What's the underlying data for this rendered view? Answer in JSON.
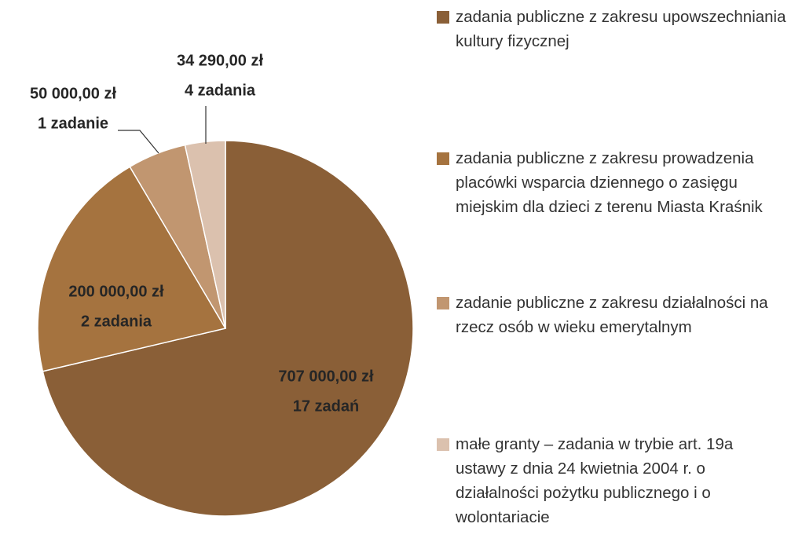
{
  "chart_data": {
    "type": "pie",
    "categories": [
      "zadania publiczne z zakresu upowszechniania kultury fizycznej",
      "zadania publiczne z zakresu prowadzenia placówki wsparcia dziennego o zasięgu miejskim dla dzieci z terenu Miasta Kraśnik",
      "zadanie publiczne z zakresu działalności na rzecz osób w wieku emerytalnym",
      "małe granty – zadania w trybie art. 19a ustawy z dnia 24 kwietnia 2004 r. o działalności pożytku publicznego i o wolontariacie"
    ],
    "values": [
      707000,
      200000,
      50000,
      34290
    ],
    "value_labels": [
      "707 000,00 zł",
      "200 000,00 zł",
      "50 000,00 zł",
      "34 290,00 zł"
    ],
    "task_labels": [
      "17 zadań",
      "2 zadania",
      "1 zadanie",
      "4 zadania"
    ],
    "colors": [
      "#8a5f37",
      "#a5733f",
      "#c19670",
      "#dbc1ae"
    ]
  }
}
